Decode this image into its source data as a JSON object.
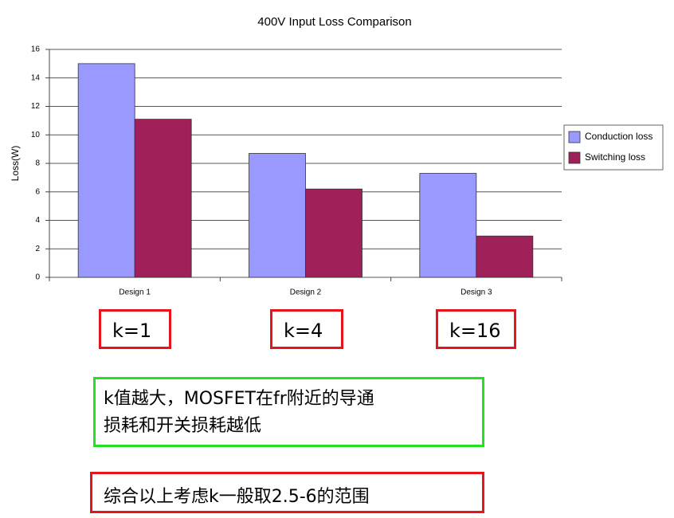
{
  "chart_data": {
    "type": "bar",
    "title": "400V Input Loss Comparison",
    "y_label": "Loss(W)",
    "categories": [
      "Design 1",
      "Design 2",
      "Design 3"
    ],
    "series": [
      {
        "name": "Conduction loss",
        "color": "#9999ff",
        "values": [
          15,
          8.7,
          7.3
        ]
      },
      {
        "name": "Switching loss",
        "color": "#a0205a",
        "values": [
          11.1,
          6.2,
          2.9
        ]
      }
    ],
    "ylim": [
      0,
      16
    ],
    "yticks": [
      0,
      2,
      4,
      6,
      8,
      10,
      12,
      14,
      16
    ],
    "grid": true,
    "legend": "right"
  },
  "annotations": {
    "k_labels": [
      "k=1",
      "k=4",
      "k=16"
    ],
    "note": [
      "k值越大，MOSFET在fr附近的导通",
      "损耗和开关损耗越低"
    ],
    "conclusion": "综合以上考虑k一般取2.5-6的范围"
  }
}
